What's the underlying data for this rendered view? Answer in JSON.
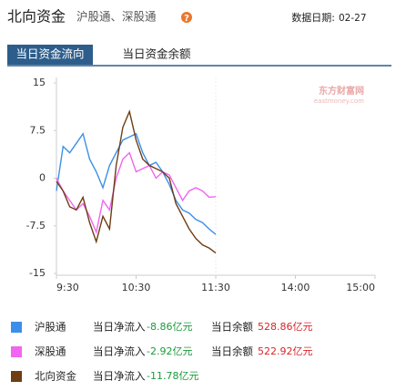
{
  "header": {
    "title": "北向资金",
    "subtitle": "沪股通、深股通",
    "help_icon": "?",
    "date_label": "数据日期:",
    "date": "02-27"
  },
  "tabs": [
    {
      "label": "当日资金流向",
      "active": true
    },
    {
      "label": "当日资金余额",
      "active": false
    }
  ],
  "chart_data": {
    "type": "line",
    "watermark": "东方财富网",
    "watermark_sub": "eastmoney.com",
    "x": [
      0,
      5,
      10,
      15,
      20,
      25,
      30,
      35,
      40,
      45,
      50,
      55,
      60,
      65,
      70,
      75,
      80,
      85,
      90,
      95,
      100,
      105,
      110,
      115,
      120
    ],
    "xlim": [
      0,
      240
    ],
    "xticks": [
      {
        "value": 0,
        "label": "9:30"
      },
      {
        "value": 60,
        "label": "10:30"
      },
      {
        "value": 120,
        "label": "11:30"
      },
      {
        "value": 180,
        "label": "14:00"
      },
      {
        "value": 240,
        "label": "15:00"
      }
    ],
    "ylim": [
      -15,
      15
    ],
    "yticks": [
      15,
      7.5,
      0,
      -7.5,
      -15
    ],
    "grid": false,
    "series": [
      {
        "name": "沪股通",
        "color": "#3b8fe8",
        "values": [
          -2,
          5,
          4,
          5.5,
          7,
          3,
          1,
          -1.5,
          2,
          4,
          6,
          6.5,
          7,
          4,
          2,
          2.5,
          1,
          -1,
          -3.5,
          -5,
          -5.5,
          -6.5,
          -7,
          -8,
          -8.86
        ]
      },
      {
        "name": "深股通",
        "color": "#f066f0",
        "values": [
          0,
          -2,
          -3.5,
          -5,
          -4,
          -6,
          -8.5,
          -3.5,
          -5,
          0,
          3,
          4,
          1,
          1.5,
          2,
          0,
          1,
          0.5,
          -1.5,
          -3.5,
          -2,
          -1.5,
          -2,
          -3,
          -2.92
        ]
      },
      {
        "name": "北向资金",
        "color": "#6e3d12",
        "values": [
          -0.5,
          -2,
          -4.5,
          -5,
          -3,
          -7,
          -10,
          -6,
          -8,
          2,
          8,
          10.5,
          6,
          3,
          2,
          1.5,
          1,
          0,
          -4,
          -6,
          -8,
          -9.5,
          -10.5,
          -11,
          -11.78
        ]
      }
    ]
  },
  "summary": {
    "inflow_label": "当日净流入",
    "balance_label": "当日余额",
    "rows": [
      {
        "inflow": "-8.86亿元",
        "balance": "528.86亿元"
      },
      {
        "inflow": "-2.92亿元",
        "balance": "522.92亿元"
      },
      {
        "inflow": "-11.78亿元"
      }
    ]
  }
}
